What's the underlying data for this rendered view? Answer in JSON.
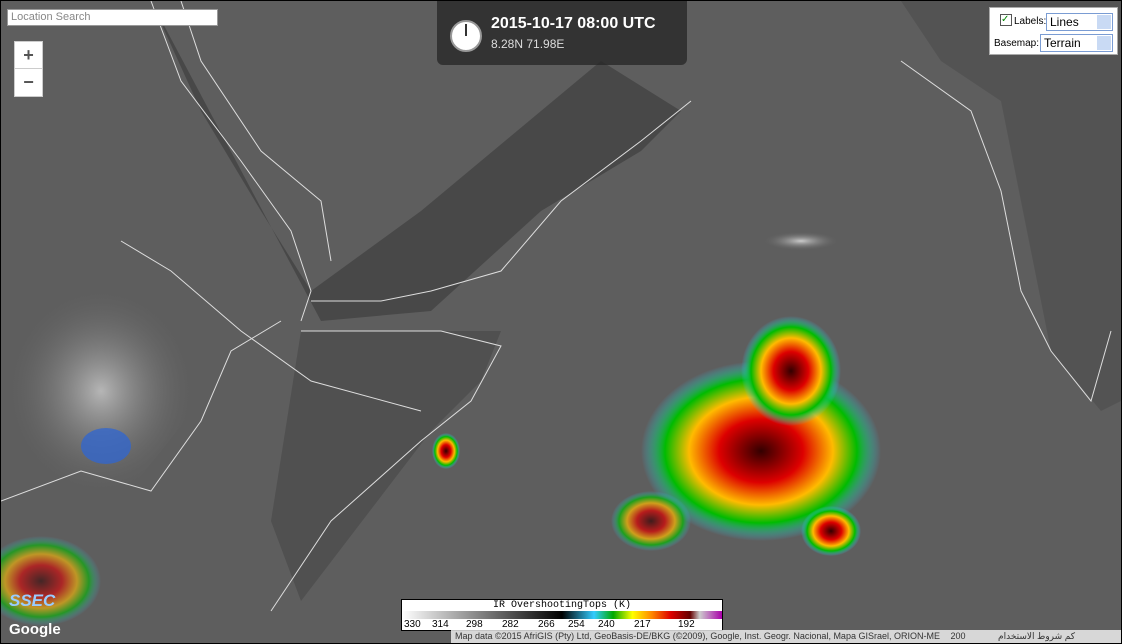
{
  "search": {
    "placeholder": "Location Search"
  },
  "zoom": {
    "in": "+",
    "out": "−"
  },
  "clock": {
    "datetime": "2015-10-17 08:00 UTC",
    "location": "8.28N 71.98E"
  },
  "controls": {
    "labels_label": "Labels:",
    "labels_value": "Lines",
    "basemap_label": "Basemap:",
    "basemap_value": "Terrain"
  },
  "colorbar": {
    "title": "IR OvershootingTops (K)",
    "ticks": [
      330,
      314,
      298,
      282,
      266,
      254,
      240,
      217,
      192
    ]
  },
  "footer": {
    "attribution": "Map data ©2015 AfriGIS (Pty) Ltd, GeoBasis-DE/BKG (©2009), Google, Inst. Geogr. Nacional, Mapa GISrael, ORION-ME",
    "scale": "200 كم",
    "terms": "شروط الاستخدام"
  },
  "logos": {
    "ssec": "SSEC",
    "google": "Google"
  }
}
